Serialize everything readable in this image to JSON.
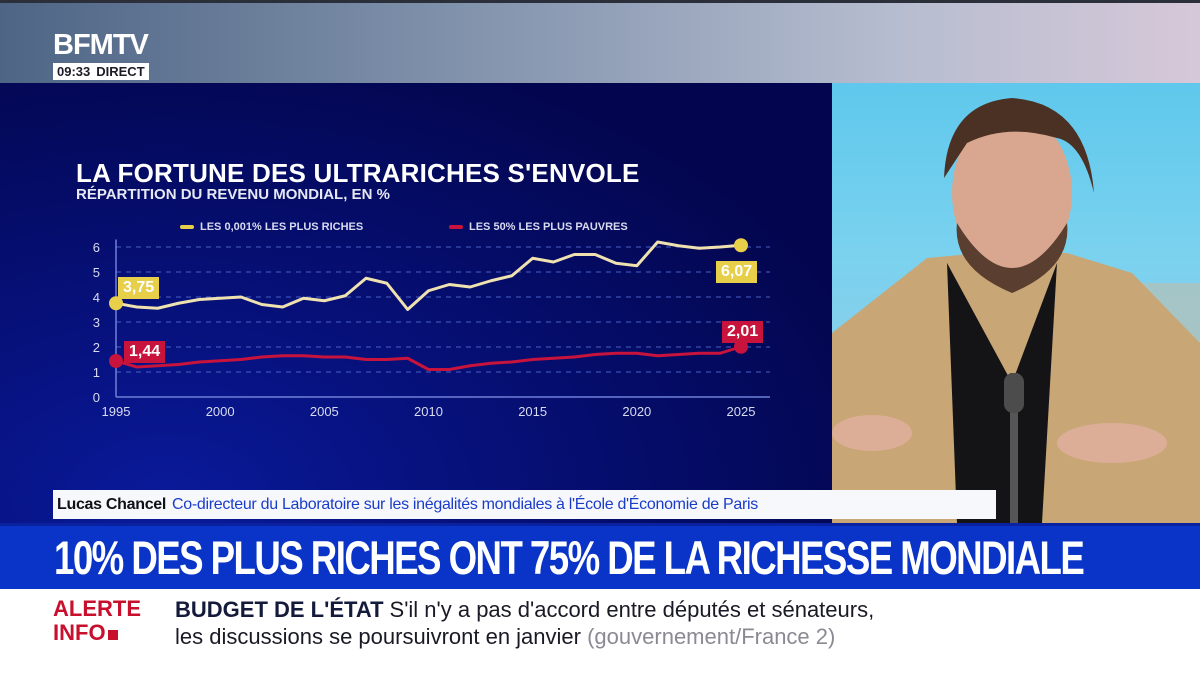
{
  "channel": {
    "name": "BFMTV",
    "time": "09:33",
    "status": "DIRECT"
  },
  "chart": {
    "title": "LA FORTUNE DES ULTRARICHES S'ENVOLE",
    "subtitle": "RÉPARTITION DU REVENU MONDIAL, EN %",
    "legend": [
      {
        "label": "LES 0,001% LES PLUS RICHES",
        "color": "#e8cf4a"
      },
      {
        "label": "LES 50% LES PLUS PAUVRES",
        "color": "#c8133c"
      }
    ],
    "start_labels": {
      "rich": "3,75",
      "poor": "1,44"
    },
    "end_labels": {
      "rich": "6,07",
      "poor": "2,01"
    }
  },
  "chart_data": {
    "type": "line",
    "title": "LA FORTUNE DES ULTRARICHES S'ENVOLE",
    "subtitle": "RÉPARTITION DU REVENU MONDIAL, EN %",
    "xlabel": "",
    "ylabel": "%",
    "x": [
      1995,
      1996,
      1997,
      1998,
      1999,
      2000,
      2001,
      2002,
      2003,
      2004,
      2005,
      2006,
      2007,
      2008,
      2009,
      2010,
      2011,
      2012,
      2013,
      2014,
      2015,
      2016,
      2017,
      2018,
      2019,
      2020,
      2021,
      2022,
      2023,
      2024,
      2025
    ],
    "x_ticks": [
      1995,
      2000,
      2005,
      2010,
      2015,
      2020,
      2025
    ],
    "y_ticks": [
      0,
      1,
      2,
      3,
      4,
      5,
      6
    ],
    "ylim": [
      0,
      6.5
    ],
    "grid": true,
    "legend_position": "top",
    "series": [
      {
        "name": "LES 0,001% LES PLUS RICHES",
        "color": "#e8cf4a",
        "values": [
          3.75,
          3.6,
          3.55,
          3.75,
          3.9,
          3.95,
          4.0,
          3.7,
          3.6,
          3.95,
          3.85,
          4.05,
          4.75,
          4.55,
          3.5,
          4.25,
          4.5,
          4.4,
          4.65,
          4.85,
          5.55,
          5.4,
          5.7,
          5.7,
          5.35,
          5.25,
          6.2,
          6.05,
          5.95,
          6.0,
          6.07
        ]
      },
      {
        "name": "LES 50% LES PLUS PAUVRES",
        "color": "#c8133c",
        "values": [
          1.44,
          1.2,
          1.25,
          1.3,
          1.4,
          1.45,
          1.5,
          1.6,
          1.65,
          1.65,
          1.6,
          1.6,
          1.5,
          1.5,
          1.55,
          1.1,
          1.1,
          1.25,
          1.35,
          1.4,
          1.5,
          1.55,
          1.6,
          1.7,
          1.75,
          1.75,
          1.65,
          1.7,
          1.75,
          1.75,
          2.01
        ]
      }
    ],
    "annotations": [
      {
        "x": 1995,
        "series": "LES 0,001% LES PLUS RICHES",
        "text": "3,75"
      },
      {
        "x": 1995,
        "series": "LES 50% LES PLUS PAUVRES",
        "text": "1,44"
      },
      {
        "x": 2025,
        "series": "LES 0,001% LES PLUS RICHES",
        "text": "6,07"
      },
      {
        "x": 2025,
        "series": "LES 50% LES PLUS PAUVRES",
        "text": "2,01"
      }
    ]
  },
  "guest": {
    "name": "Lucas Chancel",
    "role": "Co-directeur du Laboratoire sur les inégalités mondiales à l'École d'Économie de Paris"
  },
  "headline": "10% DES PLUS RICHES ONT 75% DE LA RICHESSE MONDIALE",
  "ticker": {
    "alert_line1": "ALERTE",
    "alert_line2": "INFO",
    "topic": "BUDGET DE L'ÉTAT",
    "line1": "S'il n'y a pas d'accord entre députés et sénateurs,",
    "line2": "les discussions se poursuivront en janvier",
    "source": "(gouvernement/France 2)"
  }
}
